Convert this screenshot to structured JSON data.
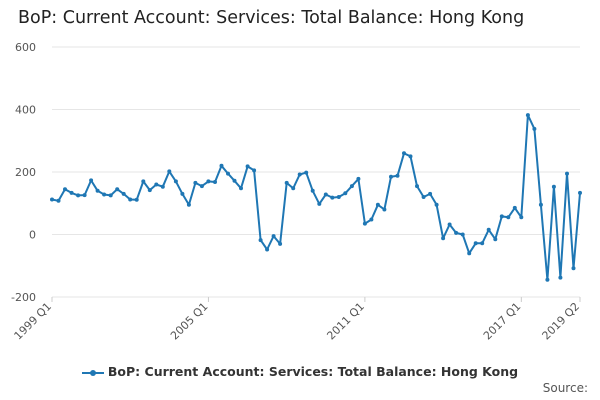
{
  "title": "BoP: Current Account: Services: Total Balance: Hong Kong",
  "source_label": "Source:",
  "colors": {
    "series": "#1f77b4",
    "grid": "#e6e6e6",
    "text": "#555555"
  },
  "chart_data": {
    "type": "line",
    "title": "BoP: Current Account: Services: Total Balance: Hong Kong",
    "xlabel": "",
    "ylabel": "",
    "ylim": [
      -200,
      600
    ],
    "yticks": [
      -200,
      0,
      200,
      400,
      600
    ],
    "xtick_labels": [
      "1999 Q1",
      "2005 Q1",
      "2011 Q1",
      "2017 Q1",
      "2019 Q2"
    ],
    "grid": "horizontal",
    "legend_position": "bottom",
    "series": [
      {
        "name": "BoP: Current Account: Services: Total Balance: Hong Kong",
        "x": [
          "1999 Q1",
          "1999 Q2",
          "1999 Q3",
          "1999 Q4",
          "2000 Q1",
          "2000 Q2",
          "2000 Q3",
          "2000 Q4",
          "2001 Q1",
          "2001 Q2",
          "2001 Q3",
          "2001 Q4",
          "2002 Q1",
          "2002 Q2",
          "2002 Q3",
          "2002 Q4",
          "2003 Q1",
          "2003 Q2",
          "2003 Q3",
          "2003 Q4",
          "2004 Q1",
          "2004 Q2",
          "2004 Q3",
          "2004 Q4",
          "2005 Q1",
          "2005 Q2",
          "2005 Q3",
          "2005 Q4",
          "2006 Q1",
          "2006 Q2",
          "2006 Q3",
          "2006 Q4",
          "2007 Q1",
          "2007 Q2",
          "2007 Q3",
          "2007 Q4",
          "2008 Q1",
          "2008 Q2",
          "2008 Q3",
          "2008 Q4",
          "2009 Q1",
          "2009 Q2",
          "2009 Q3",
          "2009 Q4",
          "2010 Q1",
          "2010 Q2",
          "2010 Q3",
          "2010 Q4",
          "2011 Q1",
          "2011 Q2",
          "2011 Q3",
          "2011 Q4",
          "2012 Q1",
          "2012 Q2",
          "2012 Q3",
          "2012 Q4",
          "2013 Q1",
          "2013 Q2",
          "2013 Q3",
          "2013 Q4",
          "2014 Q1",
          "2014 Q2",
          "2014 Q3",
          "2014 Q4",
          "2015 Q1",
          "2015 Q2",
          "2015 Q3",
          "2015 Q4",
          "2016 Q1",
          "2016 Q2",
          "2016 Q3",
          "2016 Q4",
          "2017 Q1",
          "2017 Q2",
          "2017 Q3",
          "2017 Q4",
          "2018 Q1",
          "2018 Q2",
          "2018 Q3",
          "2018 Q4",
          "2019 Q1",
          "2019 Q2"
        ],
        "values": [
          112,
          108,
          145,
          133,
          125,
          126,
          173,
          140,
          128,
          125,
          145,
          130,
          112,
          111,
          170,
          142,
          160,
          153,
          202,
          170,
          130,
          95,
          165,
          155,
          170,
          168,
          220,
          195,
          172,
          148,
          218,
          205,
          -18,
          -48,
          -5,
          -30,
          165,
          148,
          192,
          198,
          140,
          98,
          128,
          118,
          120,
          132,
          155,
          178,
          35,
          48,
          95,
          80,
          185,
          188,
          260,
          250,
          155,
          120,
          130,
          95,
          -12,
          32,
          5,
          0,
          -60,
          -28,
          -28,
          15,
          -15,
          58,
          55,
          85,
          55,
          382,
          338,
          95,
          -145,
          153,
          -138,
          195,
          -108,
          133
        ]
      }
    ]
  }
}
